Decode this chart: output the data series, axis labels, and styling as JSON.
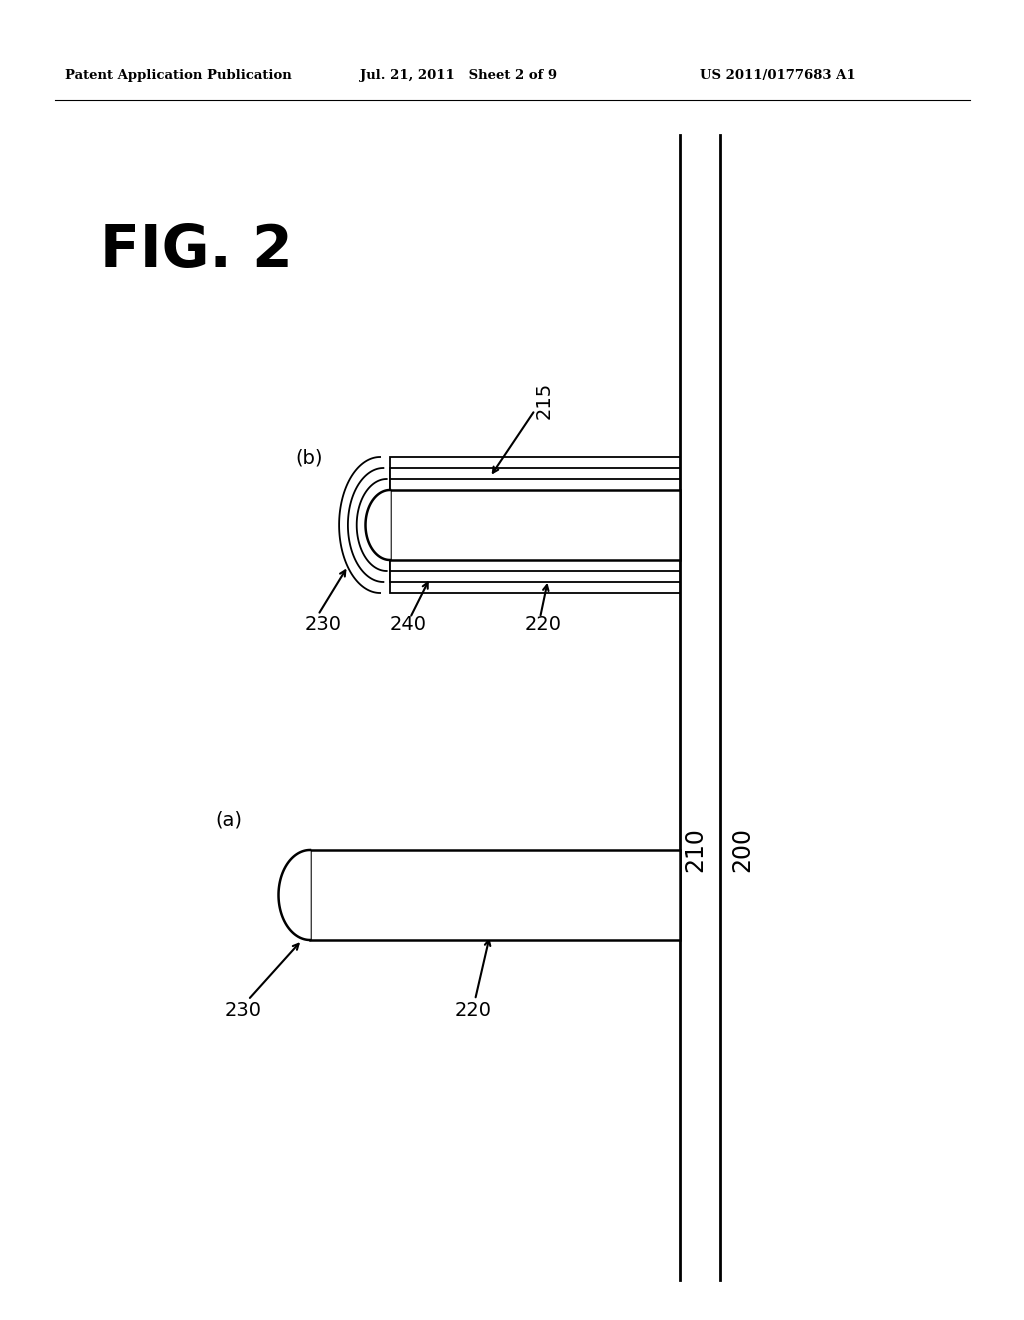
{
  "bg_color": "#ffffff",
  "header_left": "Patent Application Publication",
  "header_mid": "Jul. 21, 2011   Sheet 2 of 9",
  "header_right": "US 2011/0177683 A1",
  "fig_label": "FIG. 2"
}
